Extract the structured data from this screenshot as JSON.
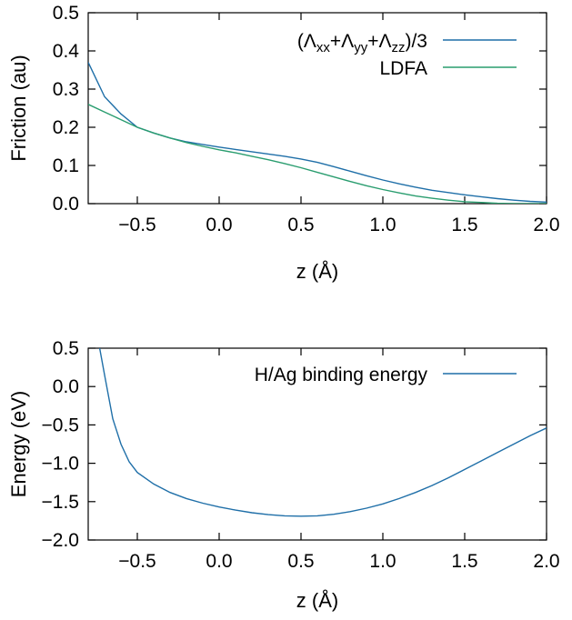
{
  "chart_data": [
    {
      "type": "line",
      "xlabel": "z (Å)",
      "ylabel": "Friction (au)",
      "xlim": [
        -0.8,
        2.0
      ],
      "ylim": [
        0.0,
        0.5
      ],
      "xticks": [
        "−0.5",
        "0.0",
        "0.5",
        "1.0",
        "1.5",
        "2.0"
      ],
      "xtick_values": [
        -0.5,
        0.0,
        0.5,
        1.0,
        1.5,
        2.0
      ],
      "yticks": [
        "0.0",
        "0.1",
        "0.2",
        "0.3",
        "0.4",
        "0.5"
      ],
      "ytick_values": [
        0.0,
        0.1,
        0.2,
        0.3,
        0.4,
        0.5
      ],
      "legend_position": "top-right",
      "series": [
        {
          "name_parts": [
            "(Λ",
            "xx",
            "+Λ",
            "yy",
            "+Λ",
            "zz",
            ")/3"
          ],
          "color": "#1f6fa8",
          "x": [
            -0.8,
            -0.7,
            -0.6,
            -0.5,
            -0.4,
            -0.3,
            -0.2,
            -0.1,
            0.0,
            0.1,
            0.2,
            0.3,
            0.4,
            0.5,
            0.6,
            0.7,
            0.8,
            0.9,
            1.0,
            1.1,
            1.2,
            1.3,
            1.4,
            1.5,
            1.6,
            1.7,
            1.8,
            1.9,
            2.0
          ],
          "y": [
            0.37,
            0.28,
            0.235,
            0.2,
            0.185,
            0.172,
            0.162,
            0.155,
            0.148,
            0.142,
            0.136,
            0.13,
            0.124,
            0.117,
            0.108,
            0.097,
            0.085,
            0.073,
            0.062,
            0.052,
            0.043,
            0.035,
            0.029,
            0.023,
            0.018,
            0.013,
            0.009,
            0.006,
            0.004
          ]
        },
        {
          "name": "LDFA",
          "color": "#2a9d6f",
          "x": [
            -0.8,
            -0.7,
            -0.6,
            -0.5,
            -0.4,
            -0.3,
            -0.2,
            -0.1,
            0.0,
            0.1,
            0.2,
            0.3,
            0.4,
            0.5,
            0.6,
            0.7,
            0.8,
            0.9,
            1.0,
            1.1,
            1.2,
            1.3,
            1.4,
            1.5,
            1.6,
            1.7,
            1.8,
            1.9,
            2.0
          ],
          "y": [
            0.26,
            0.24,
            0.22,
            0.2,
            0.185,
            0.172,
            0.16,
            0.15,
            0.141,
            0.133,
            0.124,
            0.115,
            0.105,
            0.094,
            0.082,
            0.07,
            0.058,
            0.047,
            0.037,
            0.028,
            0.02,
            0.014,
            0.009,
            0.005,
            0.003,
            0.001,
            0.0,
            0.0,
            0.0
          ]
        }
      ]
    },
    {
      "type": "line",
      "xlabel": "z (Å)",
      "ylabel": "Energy (eV)",
      "xlim": [
        -0.8,
        2.0
      ],
      "ylim": [
        -2.0,
        0.5
      ],
      "xticks": [
        "−0.5",
        "0.0",
        "0.5",
        "1.0",
        "1.5",
        "2.0"
      ],
      "xtick_values": [
        -0.5,
        0.0,
        0.5,
        1.0,
        1.5,
        2.0
      ],
      "yticks": [
        "−2.0",
        "−1.5",
        "−1.0",
        "−0.5",
        "0.0",
        "0.5"
      ],
      "ytick_values": [
        -2.0,
        -1.5,
        -1.0,
        -0.5,
        0.0,
        0.5
      ],
      "legend_position": "top-right",
      "series": [
        {
          "name": "H/Ag binding energy",
          "color": "#1f6fa8",
          "x": [
            -0.73,
            -0.7,
            -0.65,
            -0.6,
            -0.55,
            -0.5,
            -0.4,
            -0.3,
            -0.2,
            -0.1,
            0.0,
            0.1,
            0.2,
            0.3,
            0.4,
            0.5,
            0.6,
            0.7,
            0.8,
            0.9,
            1.0,
            1.1,
            1.2,
            1.3,
            1.4,
            1.5,
            1.6,
            1.7,
            1.8,
            1.9,
            2.0
          ],
          "y": [
            0.5,
            0.15,
            -0.42,
            -0.75,
            -0.98,
            -1.12,
            -1.27,
            -1.38,
            -1.46,
            -1.52,
            -1.57,
            -1.61,
            -1.645,
            -1.67,
            -1.685,
            -1.69,
            -1.685,
            -1.665,
            -1.63,
            -1.585,
            -1.53,
            -1.46,
            -1.38,
            -1.29,
            -1.19,
            -1.08,
            -0.97,
            -0.86,
            -0.75,
            -0.64,
            -0.54
          ]
        }
      ]
    }
  ]
}
